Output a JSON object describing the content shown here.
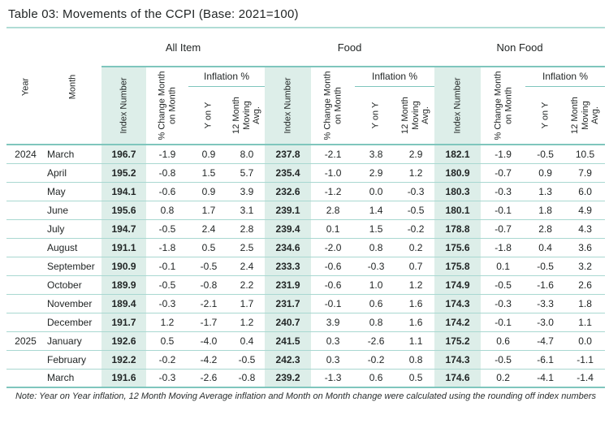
{
  "title": "Table 03: Movements of the CCPI (Base: 2021=100)",
  "note": "Note: Year on Year inflation, 12 Month Moving Average inflation and Month on Month change were calculated using the rounding off index numbers",
  "colors": {
    "accent_line": "#7fc6bd",
    "row_line": "#a9d8d1",
    "index_column_bg": "#ddeee9",
    "text": "#222626"
  },
  "table": {
    "groups": [
      "All Item",
      "Food",
      "Non Food"
    ],
    "col_headers": {
      "year": "Year",
      "month": "Month",
      "index": "Index Number",
      "mom": "% Change Month on Month",
      "inflation": "Inflation %",
      "yoy": "Y on Y",
      "avg12": "12 Month Moving Avg."
    },
    "rows": [
      {
        "year": "2024",
        "month": "March",
        "all": [
          "196.7",
          "-1.9",
          "0.9",
          "8.0"
        ],
        "food": [
          "237.8",
          "-2.1",
          "3.8",
          "2.9"
        ],
        "nonfood": [
          "182.1",
          "-1.9",
          "-0.5",
          "10.5"
        ]
      },
      {
        "year": "",
        "month": "April",
        "all": [
          "195.2",
          "-0.8",
          "1.5",
          "5.7"
        ],
        "food": [
          "235.4",
          "-1.0",
          "2.9",
          "1.2"
        ],
        "nonfood": [
          "180.9",
          "-0.7",
          "0.9",
          "7.9"
        ]
      },
      {
        "year": "",
        "month": "May",
        "all": [
          "194.1",
          "-0.6",
          "0.9",
          "3.9"
        ],
        "food": [
          "232.6",
          "-1.2",
          "0.0",
          "-0.3"
        ],
        "nonfood": [
          "180.3",
          "-0.3",
          "1.3",
          "6.0"
        ]
      },
      {
        "year": "",
        "month": "June",
        "all": [
          "195.6",
          "0.8",
          "1.7",
          "3.1"
        ],
        "food": [
          "239.1",
          "2.8",
          "1.4",
          "-0.5"
        ],
        "nonfood": [
          "180.1",
          "-0.1",
          "1.8",
          "4.9"
        ]
      },
      {
        "year": "",
        "month": "July",
        "all": [
          "194.7",
          "-0.5",
          "2.4",
          "2.8"
        ],
        "food": [
          "239.4",
          "0.1",
          "1.5",
          "-0.2"
        ],
        "nonfood": [
          "178.8",
          "-0.7",
          "2.8",
          "4.3"
        ]
      },
      {
        "year": "",
        "month": "August",
        "all": [
          "191.1",
          "-1.8",
          "0.5",
          "2.5"
        ],
        "food": [
          "234.6",
          "-2.0",
          "0.8",
          "0.2"
        ],
        "nonfood": [
          "175.6",
          "-1.8",
          "0.4",
          "3.6"
        ]
      },
      {
        "year": "",
        "month": "September",
        "all": [
          "190.9",
          "-0.1",
          "-0.5",
          "2.4"
        ],
        "food": [
          "233.3",
          "-0.6",
          "-0.3",
          "0.7"
        ],
        "nonfood": [
          "175.8",
          "0.1",
          "-0.5",
          "3.2"
        ]
      },
      {
        "year": "",
        "month": "October",
        "all": [
          "189.9",
          "-0.5",
          "-0.8",
          "2.2"
        ],
        "food": [
          "231.9",
          "-0.6",
          "1.0",
          "1.2"
        ],
        "nonfood": [
          "174.9",
          "-0.5",
          "-1.6",
          "2.6"
        ]
      },
      {
        "year": "",
        "month": "November",
        "all": [
          "189.4",
          "-0.3",
          "-2.1",
          "1.7"
        ],
        "food": [
          "231.7",
          "-0.1",
          "0.6",
          "1.6"
        ],
        "nonfood": [
          "174.3",
          "-0.3",
          "-3.3",
          "1.8"
        ]
      },
      {
        "year": "",
        "month": "December",
        "all": [
          "191.7",
          "1.2",
          "-1.7",
          "1.2"
        ],
        "food": [
          "240.7",
          "3.9",
          "0.8",
          "1.6"
        ],
        "nonfood": [
          "174.2",
          "-0.1",
          "-3.0",
          "1.1"
        ]
      },
      {
        "year": "2025",
        "month": "January",
        "all": [
          "192.6",
          "0.5",
          "-4.0",
          "0.4"
        ],
        "food": [
          "241.5",
          "0.3",
          "-2.6",
          "1.1"
        ],
        "nonfood": [
          "175.2",
          "0.6",
          "-4.7",
          "0.0"
        ]
      },
      {
        "year": "",
        "month": "February",
        "all": [
          "192.2",
          "-0.2",
          "-4.2",
          "-0.5"
        ],
        "food": [
          "242.3",
          "0.3",
          "-0.2",
          "0.8"
        ],
        "nonfood": [
          "174.3",
          "-0.5",
          "-6.1",
          "-1.1"
        ]
      },
      {
        "year": "",
        "month": "March",
        "all": [
          "191.6",
          "-0.3",
          "-2.6",
          "-0.8"
        ],
        "food": [
          "239.2",
          "-1.3",
          "0.6",
          "0.5"
        ],
        "nonfood": [
          "174.6",
          "0.2",
          "-4.1",
          "-1.4"
        ]
      }
    ]
  }
}
